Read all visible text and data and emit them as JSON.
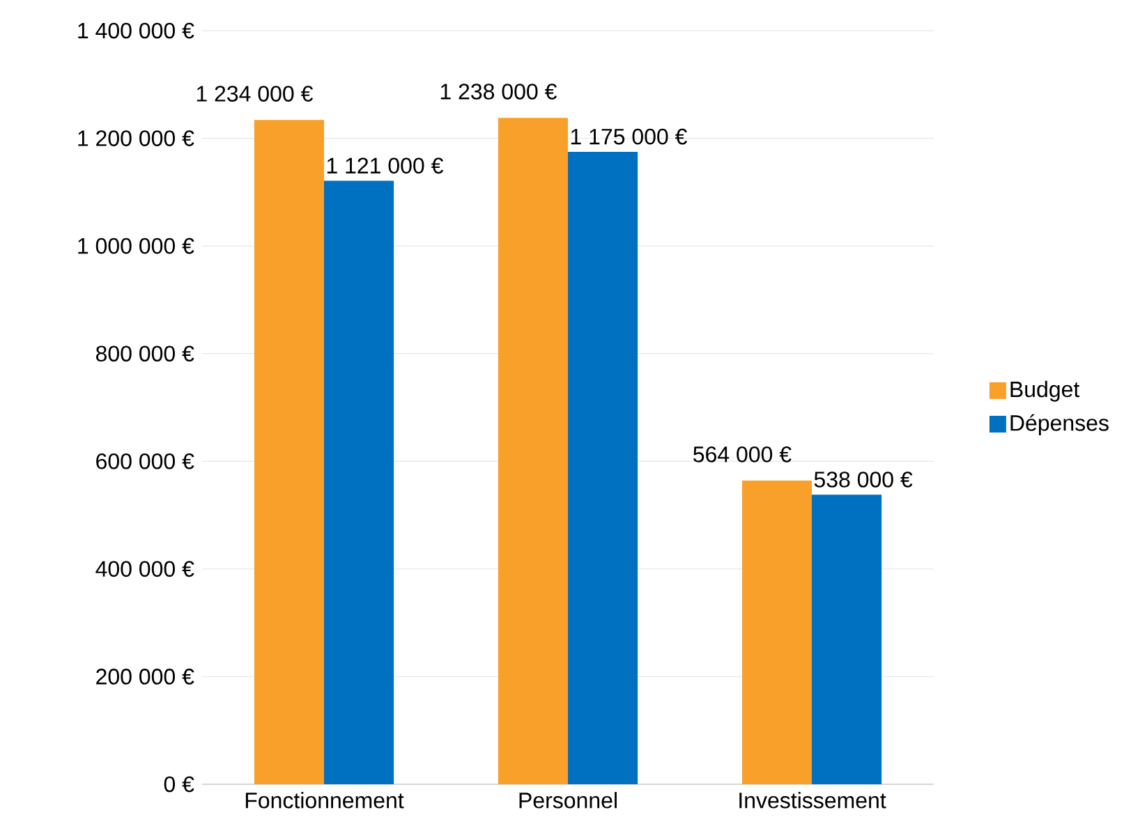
{
  "chart_data": {
    "type": "bar",
    "categories": [
      "Fonctionnement",
      "Personnel",
      "Investissement"
    ],
    "series": [
      {
        "name": "Budget",
        "color": "#f9a02a",
        "values": [
          1234000,
          1238000,
          564000
        ],
        "value_labels": [
          "1 234 000 €",
          "1 238 000 €",
          "564 000 €"
        ]
      },
      {
        "name": "Dépenses",
        "color": "#0070c0",
        "values": [
          1121000,
          1175000,
          538000
        ],
        "value_labels": [
          "1 121 000 €",
          "1 175 000 €",
          "538 000 €"
        ]
      }
    ],
    "ylim": [
      0,
      1400000
    ],
    "yticks": [
      {
        "value": 0,
        "label": "0 €"
      },
      {
        "value": 200000,
        "label": "200 000 €"
      },
      {
        "value": 400000,
        "label": "400 000 €"
      },
      {
        "value": 600000,
        "label": "600 000 €"
      },
      {
        "value": 800000,
        "label": "800 000 €"
      },
      {
        "value": 1000000,
        "label": "1 000 000 €"
      },
      {
        "value": 1200000,
        "label": "1 200 000 €"
      },
      {
        "value": 1400000,
        "label": "1 400 000 €"
      }
    ],
    "grid": "y",
    "legend": "right"
  }
}
